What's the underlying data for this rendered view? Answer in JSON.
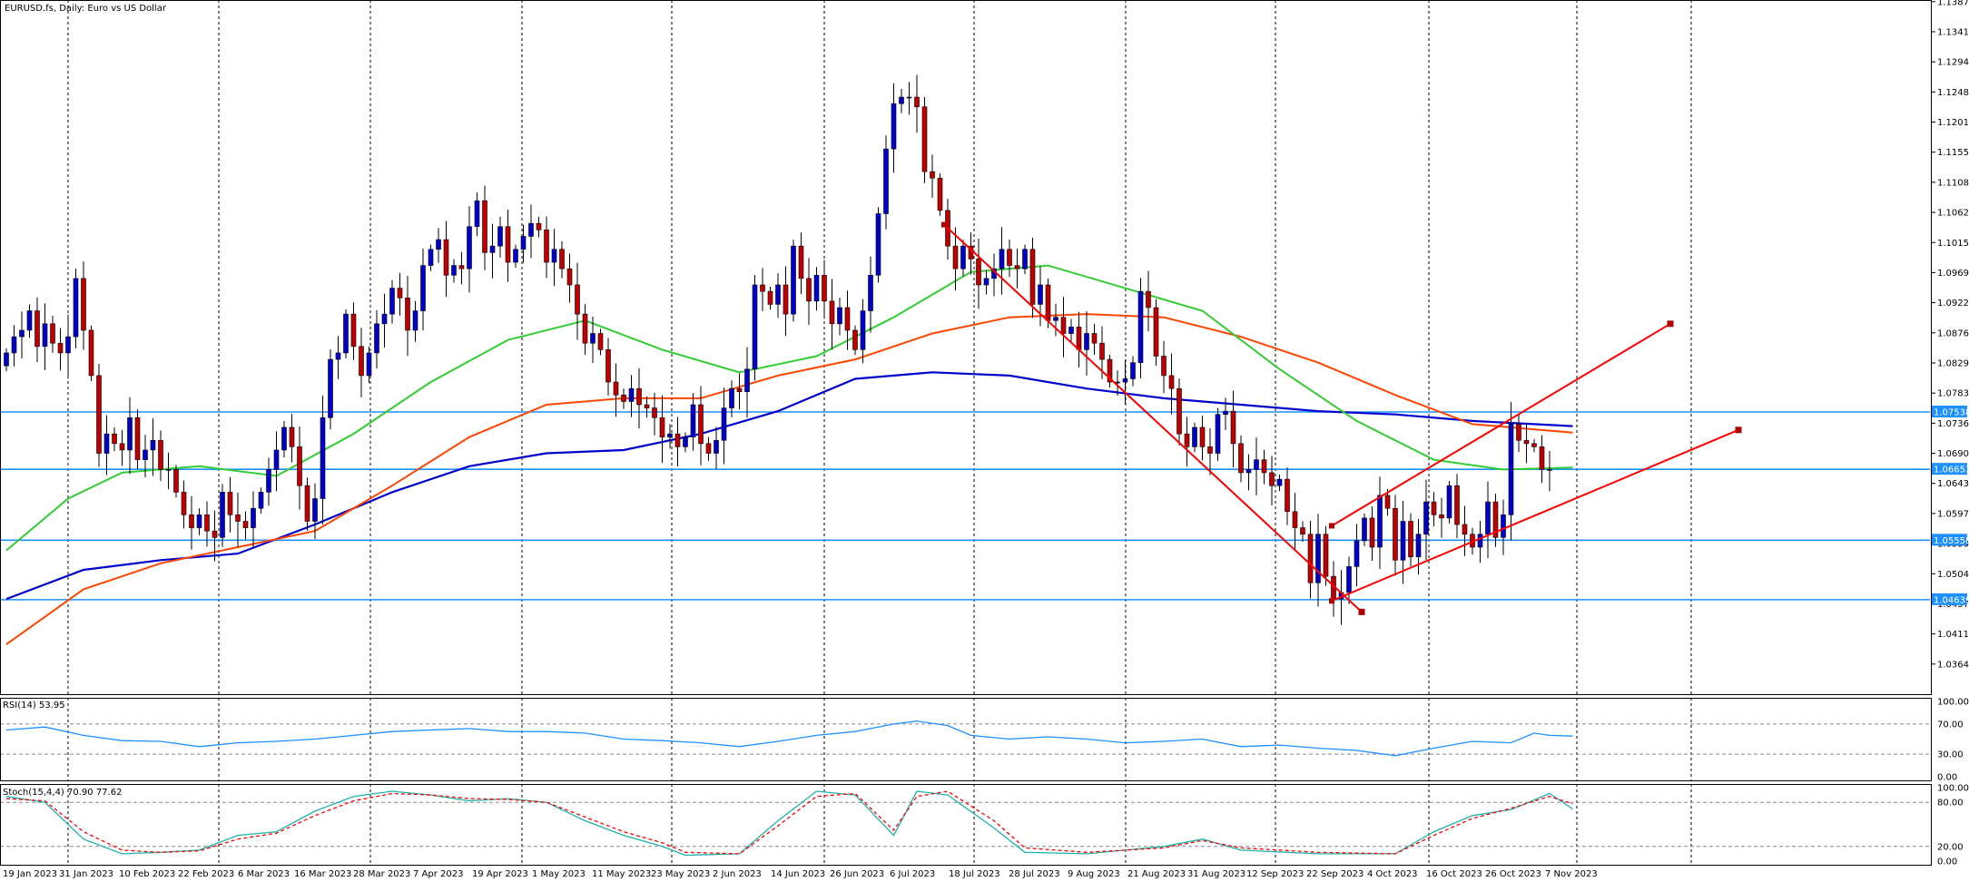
{
  "chart_title": "EURUSD.fs, Daily:  Euro vs US Dollar",
  "chart_data": {
    "type": "candlestick",
    "symbol": "EURUSD.fs",
    "timeframe": "Daily",
    "description": "Euro vs US Dollar",
    "ylim": [
      1.0318,
      1.139
    ],
    "price_ticks": [
      "1.13875",
      "1.13410",
      "1.12945",
      "1.12480",
      "1.12015",
      "1.11550",
      "1.11085",
      "1.10620",
      "1.10155",
      "1.09690",
      "1.09225",
      "1.08760",
      "1.08295",
      "1.07830",
      "1.07365",
      "1.06900",
      "1.06435",
      "1.05970",
      "1.05505",
      "1.05040",
      "1.04575",
      "1.04110",
      "1.03645"
    ],
    "date_labels": [
      "19 Jan 2023",
      "31 Jan 2023",
      "10 Feb 2023",
      "22 Feb 2023",
      "6 Mar 2023",
      "16 Mar 2023",
      "28 Mar 2023",
      "7 Apr 2023",
      "19 Apr 2023",
      "1 May 2023",
      "11 May 2023",
      "23 May 2023",
      "2 Jun 2023",
      "14 Jun 2023",
      "26 Jun 2023",
      "6 Jul 2023",
      "18 Jul 2023",
      "28 Jul 2023",
      "9 Aug 2023",
      "21 Aug 2023",
      "31 Aug 2023",
      "12 Sep 2023",
      "22 Sep 2023",
      "4 Oct 2023",
      "16 Oct 2023",
      "26 Oct 2023",
      "7 Nov 2023"
    ],
    "horizontal_levels": [
      {
        "value": 1.07538,
        "label": "1.07538"
      },
      {
        "value": 1.06653,
        "label": "1.06653"
      },
      {
        "value": 1.05558,
        "label": "1.05558"
      },
      {
        "value": 1.04639,
        "label": "1.04639"
      }
    ],
    "closes": [
      1.0845,
      1.087,
      1.088,
      1.091,
      1.0855,
      1.089,
      1.086,
      1.0845,
      1.087,
      1.096,
      1.088,
      1.081,
      1.069,
      1.072,
      1.0705,
      1.0695,
      1.0745,
      1.068,
      1.0695,
      1.071,
      1.0665,
      1.0665,
      1.063,
      1.0595,
      1.0575,
      1.0595,
      1.057,
      1.056,
      1.063,
      1.0595,
      1.0585,
      1.0575,
      1.0605,
      1.063,
      1.0665,
      1.0695,
      1.073,
      1.07,
      1.064,
      1.0585,
      1.062,
      1.0745,
      1.0835,
      1.0845,
      1.0905,
      1.0855,
      1.081,
      1.0845,
      1.089,
      1.0905,
      1.0945,
      1.093,
      1.088,
      1.091,
      1.098,
      1.1005,
      1.102,
      1.0965,
      1.098,
      1.0975,
      1.104,
      1.108,
      1.1,
      1.101,
      1.104,
      1.0985,
      1.1005,
      1.1025,
      1.1045,
      1.1035,
      1.0985,
      1.1005,
      1.0975,
      1.095,
      1.0905,
      1.086,
      1.0875,
      1.085,
      1.08,
      1.078,
      1.077,
      1.079,
      1.0765,
      1.076,
      1.0745,
      1.0715,
      1.072,
      1.07,
      1.0715,
      1.0765,
      1.0705,
      1.069,
      1.071,
      1.076,
      1.079,
      1.0785,
      1.082,
      1.095,
      1.094,
      1.092,
      1.095,
      1.0905,
      1.101,
      1.096,
      1.0925,
      1.0965,
      1.0925,
      1.089,
      1.0915,
      1.088,
      1.085,
      1.091,
      1.0965,
      1.106,
      1.116,
      1.123,
      1.124,
      1.124,
      1.1225,
      1.1125,
      1.1115,
      1.1065,
      1.101,
      1.0975,
      1.101,
      1.099,
      1.095,
      1.096,
      1.0975,
      1.1005,
      1.098,
      1.0975,
      1.1005,
      1.092,
      1.095,
      1.0895,
      1.09,
      1.0875,
      1.0885,
      1.085,
      1.0875,
      1.086,
      1.0835,
      1.08,
      1.08,
      1.0805,
      1.083,
      1.094,
      1.0915,
      1.084,
      1.081,
      1.079,
      1.072,
      1.07,
      1.073,
      1.07,
      1.069,
      1.075,
      1.0755,
      1.0705,
      1.066,
      1.0665,
      1.068,
      1.066,
      1.064,
      1.065,
      1.06,
      1.0575,
      1.0565,
      1.049,
      1.0565,
      1.05,
      1.0465,
      1.0475,
      1.0515,
      1.0555,
      1.059,
      1.0545,
      1.0625,
      1.0605,
      1.0525,
      1.0585,
      1.053,
      1.0565,
      1.0615,
      1.0595,
      1.059,
      1.064,
      1.058,
      1.0565,
      1.0545,
      1.0565,
      1.0615,
      1.056,
      1.0595,
      1.0735,
      1.071,
      1.0705,
      1.07,
      1.0665,
      1.0665
    ],
    "ma_green_points": [
      [
        0,
        1.054
      ],
      [
        8,
        1.062
      ],
      [
        15,
        1.066
      ],
      [
        25,
        1.067
      ],
      [
        35,
        1.0655
      ],
      [
        45,
        1.072
      ],
      [
        55,
        1.08
      ],
      [
        65,
        1.0865
      ],
      [
        75,
        1.0895
      ],
      [
        85,
        1.085
      ],
      [
        95,
        1.0815
      ],
      [
        105,
        1.084
      ],
      [
        115,
        1.09
      ],
      [
        125,
        1.097
      ],
      [
        135,
        1.098
      ],
      [
        145,
        1.0945
      ],
      [
        155,
        1.091
      ],
      [
        165,
        1.082
      ],
      [
        175,
        1.074
      ],
      [
        185,
        1.068
      ],
      [
        194,
        1.0665
      ],
      [
        203,
        1.0668
      ]
    ],
    "ma_orange_points": [
      [
        0,
        1.0395
      ],
      [
        10,
        1.048
      ],
      [
        20,
        1.052
      ],
      [
        30,
        1.0545
      ],
      [
        40,
        1.057
      ],
      [
        50,
        1.064
      ],
      [
        60,
        1.0715
      ],
      [
        70,
        1.0765
      ],
      [
        80,
        1.0775
      ],
      [
        90,
        1.0775
      ],
      [
        100,
        1.081
      ],
      [
        110,
        1.0835
      ],
      [
        120,
        1.0875
      ],
      [
        130,
        1.09
      ],
      [
        140,
        1.0905
      ],
      [
        150,
        1.09
      ],
      [
        160,
        1.087
      ],
      [
        170,
        1.083
      ],
      [
        180,
        1.078
      ],
      [
        190,
        1.0735
      ],
      [
        203,
        1.0722
      ]
    ],
    "ma_blue_points": [
      [
        0,
        1.0465
      ],
      [
        10,
        1.051
      ],
      [
        20,
        1.0525
      ],
      [
        30,
        1.0535
      ],
      [
        40,
        1.058
      ],
      [
        50,
        1.063
      ],
      [
        60,
        1.067
      ],
      [
        70,
        1.069
      ],
      [
        80,
        1.0695
      ],
      [
        90,
        1.072
      ],
      [
        100,
        1.0755
      ],
      [
        110,
        1.0805
      ],
      [
        120,
        1.0815
      ],
      [
        130,
        1.081
      ],
      [
        140,
        1.079
      ],
      [
        150,
        1.0775
      ],
      [
        160,
        1.0765
      ],
      [
        170,
        1.0755
      ],
      [
        180,
        1.075
      ],
      [
        190,
        1.074
      ],
      [
        203,
        1.0732
      ]
    ],
    "trendlines": [
      {
        "from": [
          1.1043,
          1040
        ],
        "to": [
          1.0445,
          1500
        ]
      },
      {
        "from": [
          1.0578,
          1467
        ],
        "to": [
          1.089,
          1840
        ]
      },
      {
        "from": [
          1.0462,
          1467
        ],
        "to": [
          1.0726,
          1915
        ]
      }
    ],
    "rsi": {
      "label": "RSI(14) 53.95",
      "ticks": [
        "100.00",
        "70.00",
        "30.00",
        "0.00"
      ],
      "levels": [
        70,
        30
      ],
      "points": [
        [
          0,
          62
        ],
        [
          5,
          66
        ],
        [
          10,
          55
        ],
        [
          15,
          48
        ],
        [
          20,
          47
        ],
        [
          25,
          40
        ],
        [
          30,
          45
        ],
        [
          35,
          47
        ],
        [
          40,
          50
        ],
        [
          45,
          55
        ],
        [
          50,
          60
        ],
        [
          55,
          62
        ],
        [
          60,
          64
        ],
        [
          65,
          60
        ],
        [
          70,
          60
        ],
        [
          75,
          58
        ],
        [
          80,
          50
        ],
        [
          85,
          48
        ],
        [
          90,
          45
        ],
        [
          95,
          40
        ],
        [
          100,
          47
        ],
        [
          105,
          55
        ],
        [
          110,
          60
        ],
        [
          115,
          70
        ],
        [
          118,
          74
        ],
        [
          122,
          68
        ],
        [
          125,
          55
        ],
        [
          130,
          50
        ],
        [
          135,
          53
        ],
        [
          140,
          50
        ],
        [
          145,
          45
        ],
        [
          150,
          47
        ],
        [
          155,
          50
        ],
        [
          160,
          40
        ],
        [
          165,
          42
        ],
        [
          170,
          38
        ],
        [
          175,
          35
        ],
        [
          180,
          28
        ],
        [
          185,
          38
        ],
        [
          190,
          47
        ],
        [
          195,
          45
        ],
        [
          198,
          58
        ],
        [
          200,
          55
        ],
        [
          203,
          54
        ]
      ]
    },
    "stochastic": {
      "label": "Stoch(15,4,4) 70.90 77.62",
      "ticks": [
        "100.00",
        "80.00",
        "20.00",
        "0.00"
      ],
      "levels": [
        80,
        20
      ],
      "k_points": [
        [
          0,
          88
        ],
        [
          5,
          80
        ],
        [
          10,
          30
        ],
        [
          15,
          10
        ],
        [
          20,
          12
        ],
        [
          25,
          15
        ],
        [
          30,
          35
        ],
        [
          35,
          40
        ],
        [
          40,
          68
        ],
        [
          45,
          88
        ],
        [
          50,
          95
        ],
        [
          55,
          90
        ],
        [
          60,
          82
        ],
        [
          65,
          85
        ],
        [
          70,
          80
        ],
        [
          75,
          55
        ],
        [
          80,
          35
        ],
        [
          85,
          20
        ],
        [
          88,
          8
        ],
        [
          95,
          10
        ],
        [
          100,
          55
        ],
        [
          105,
          95
        ],
        [
          110,
          90
        ],
        [
          115,
          35
        ],
        [
          118,
          95
        ],
        [
          122,
          90
        ],
        [
          128,
          45
        ],
        [
          132,
          12
        ],
        [
          140,
          10
        ],
        [
          150,
          20
        ],
        [
          155,
          30
        ],
        [
          160,
          15
        ],
        [
          170,
          10
        ],
        [
          180,
          10
        ],
        [
          185,
          40
        ],
        [
          190,
          62
        ],
        [
          195,
          70
        ],
        [
          200,
          92
        ],
        [
          203,
          71
        ]
      ],
      "d_points": [
        [
          0,
          85
        ],
        [
          5,
          82
        ],
        [
          10,
          40
        ],
        [
          15,
          15
        ],
        [
          20,
          12
        ],
        [
          25,
          14
        ],
        [
          30,
          30
        ],
        [
          35,
          38
        ],
        [
          40,
          62
        ],
        [
          45,
          82
        ],
        [
          50,
          92
        ],
        [
          55,
          90
        ],
        [
          60,
          85
        ],
        [
          65,
          84
        ],
        [
          70,
          80
        ],
        [
          75,
          60
        ],
        [
          80,
          40
        ],
        [
          85,
          25
        ],
        [
          88,
          12
        ],
        [
          95,
          10
        ],
        [
          100,
          48
        ],
        [
          105,
          88
        ],
        [
          110,
          92
        ],
        [
          115,
          42
        ],
        [
          118,
          88
        ],
        [
          122,
          95
        ],
        [
          128,
          55
        ],
        [
          132,
          18
        ],
        [
          140,
          12
        ],
        [
          150,
          18
        ],
        [
          155,
          28
        ],
        [
          160,
          18
        ],
        [
          170,
          12
        ],
        [
          180,
          10
        ],
        [
          185,
          35
        ],
        [
          190,
          58
        ],
        [
          195,
          72
        ],
        [
          200,
          88
        ],
        [
          203,
          78
        ]
      ]
    }
  },
  "price_axis": {
    "current_price_label": "1.06653"
  }
}
